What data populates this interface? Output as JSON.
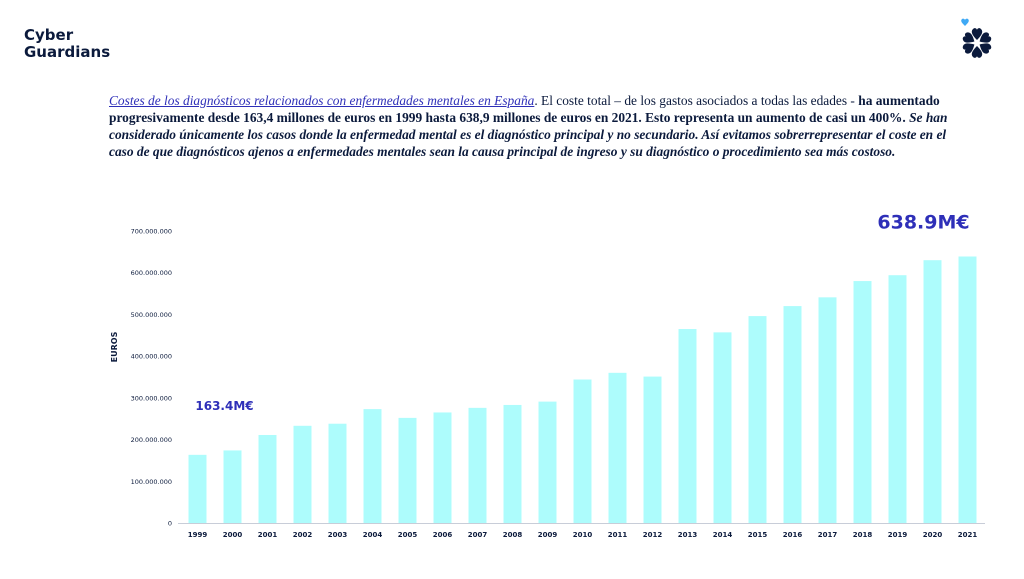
{
  "brand": {
    "line1": "Cyber",
    "line2": "Guardians"
  },
  "intro": {
    "lead": "Costes de los diagnósticos relacionados con enfermedades mentales en España",
    "part1": ". El coste total – de los gastos asociados a todas las edades - ",
    "bold": "ha aumentado progresivamente desde 163,4 millones de euros en 1999 hasta 638,9 millones de euros en 2021. Esto representa un aumento de casi un 400%.",
    "note": " Se han considerado únicamente los casos donde la enfermedad mental es el diagnóstico principal y no secundario. Así evitamos sobrerrepresentar el coste en el caso de que diagnósticos ajenos a enfermedades mentales sean la causa principal de ingreso y su diagnóstico o procedimiento sea más costoso."
  },
  "colors": {
    "bar": "#adfcfc",
    "accent": "#2e2fb8",
    "navy": "#0b1a3c",
    "logo_accent": "#3fa9f5"
  },
  "chart_data": {
    "type": "bar",
    "title": "",
    "xlabel": "",
    "ylabel": "EUROS",
    "categories": [
      "1999",
      "2000",
      "2001",
      "2002",
      "2003",
      "2004",
      "2005",
      "2006",
      "2007",
      "2008",
      "2009",
      "2010",
      "2011",
      "2012",
      "2013",
      "2014",
      "2015",
      "2016",
      "2017",
      "2018",
      "2019",
      "2020",
      "2021"
    ],
    "values": [
      163400000,
      174000000,
      211000000,
      233000000,
      238000000,
      273000000,
      252000000,
      265000000,
      276000000,
      283000000,
      291000000,
      344000000,
      360000000,
      351000000,
      465000000,
      457000000,
      496000000,
      520000000,
      541000000,
      580000000,
      594000000,
      630000000,
      638900000
    ],
    "ylim": [
      0,
      700000000
    ],
    "yticks": [
      0,
      100000000,
      200000000,
      300000000,
      400000000,
      500000000,
      600000000,
      700000000
    ],
    "ytick_labels": [
      "0",
      "100.000.000",
      "200.000.000",
      "300.000.000",
      "400.000.000",
      "500.000.000",
      "600.000.000",
      "700.000.000"
    ],
    "grid": false,
    "annotations": [
      {
        "text": "163.4M€",
        "category": "1999",
        "value": 163400000
      },
      {
        "text": "638.9M€",
        "category": "2021",
        "value": 638900000
      }
    ]
  }
}
